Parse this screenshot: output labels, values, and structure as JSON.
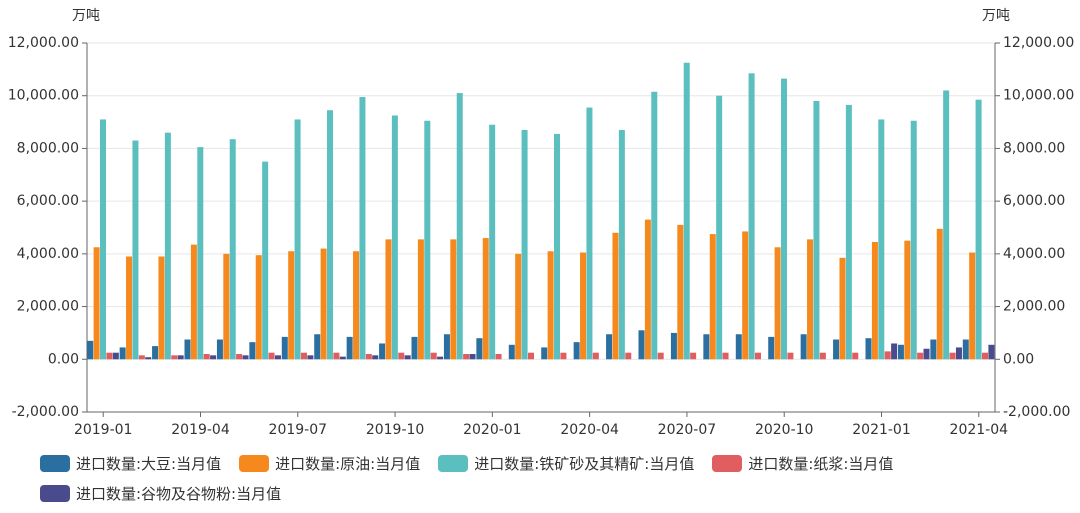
{
  "chart_data": {
    "type": "bar",
    "y_label": "万吨",
    "y2_label": "万吨",
    "categories": [
      "2019-01",
      null,
      null,
      "2019-04",
      null,
      null,
      "2019-07",
      null,
      null,
      "2019-10",
      null,
      null,
      "2020-01",
      null,
      null,
      "2020-04",
      null,
      null,
      "2020-07",
      null,
      null,
      "2020-10",
      null,
      null,
      "2021-01",
      null,
      null,
      "2021-04"
    ],
    "series": [
      {
        "name": "进口数量:大豆:当月值",
        "color": "#2a6fa0",
        "values": [
          700,
          450,
          500,
          750,
          750,
          650,
          850,
          950,
          850,
          600,
          850,
          950,
          800,
          550,
          450,
          650,
          950,
          1100,
          1000,
          950,
          950,
          850,
          950,
          750,
          800,
          550,
          750,
          750
        ]
      },
      {
        "name": "进口数量:原油:当月值",
        "color": "#f5891e",
        "values": [
          4250,
          3900,
          3900,
          4350,
          4000,
          3950,
          4100,
          4200,
          4100,
          4550,
          4550,
          4550,
          4600,
          4000,
          4100,
          4050,
          4800,
          5300,
          5100,
          4750,
          4850,
          4250,
          4550,
          3850,
          4450,
          4500,
          4950,
          4050
        ]
      },
      {
        "name": "进口数量:铁矿砂及其精矿:当月值",
        "color": "#5bbfc0",
        "values": [
          9100,
          8300,
          8600,
          8050,
          8350,
          7500,
          9100,
          9450,
          9950,
          9250,
          9050,
          10100,
          8900,
          8700,
          8550,
          9550,
          8700,
          10150,
          11250,
          10000,
          10850,
          10650,
          9800,
          9650,
          9100,
          9050,
          10200,
          9850
        ]
      },
      {
        "name": "进口数量:纸浆:当月值",
        "color": "#e05e5f",
        "values": [
          250,
          150,
          150,
          200,
          200,
          250,
          250,
          250,
          200,
          250,
          250,
          200,
          200,
          250,
          250,
          250,
          250,
          250,
          250,
          250,
          250,
          250,
          250,
          250,
          300,
          250,
          250,
          250
        ]
      },
      {
        "name": "进口数量:谷物及谷物粉:当月值",
        "color": "#4a4b8c",
        "values": [
          250,
          80,
          150,
          150,
          150,
          150,
          150,
          100,
          150,
          150,
          100,
          200,
          null,
          null,
          null,
          null,
          null,
          null,
          null,
          null,
          null,
          null,
          null,
          null,
          600,
          400,
          450,
          550
        ]
      }
    ],
    "ylim": [
      -2000,
      12000
    ],
    "yticks": [
      {
        "value": -2000,
        "label": "-2,000.00"
      },
      {
        "value": 0,
        "label": "0.00"
      },
      {
        "value": 2000,
        "label": "2,000.00"
      },
      {
        "value": 4000,
        "label": "4,000.00"
      },
      {
        "value": 6000,
        "label": "6,000.00"
      },
      {
        "value": 8000,
        "label": "8,000.00"
      },
      {
        "value": 10000,
        "label": "10,000.00"
      },
      {
        "value": 12000,
        "label": "12,000.00"
      }
    ],
    "y2lim": [
      -2000,
      12000
    ],
    "y2ticks": [
      {
        "value": -2000,
        "label": "-2,000.00"
      },
      {
        "value": 0,
        "label": "0.00"
      },
      {
        "value": 2000,
        "label": "2,000.00"
      },
      {
        "value": 4000,
        "label": "4,000.00"
      },
      {
        "value": 6000,
        "label": "6,000.00"
      },
      {
        "value": 8000,
        "label": "8,000.00"
      },
      {
        "value": 10000,
        "label": "10,000.00"
      },
      {
        "value": 12000,
        "label": "12,000.00"
      }
    ],
    "grid": true
  }
}
